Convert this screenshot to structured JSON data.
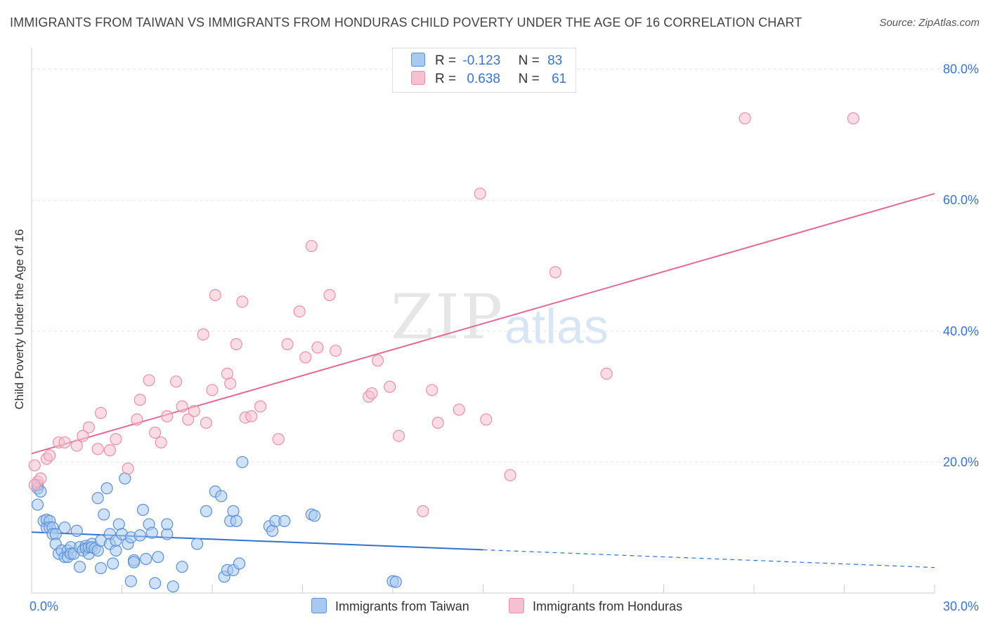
{
  "title": "IMMIGRANTS FROM TAIWAN VS IMMIGRANTS FROM HONDURAS CHILD POVERTY UNDER THE AGE OF 16 CORRELATION CHART",
  "source": "Source: ZipAtlas.com",
  "watermark": {
    "zip": "ZIP",
    "atlas": "atlas"
  },
  "legend": {
    "rows": [
      {
        "r_label": "R =",
        "r_value": "-0.123",
        "n_label": "N =",
        "n_value": "83",
        "color": "#a8c8f0"
      },
      {
        "r_label": "R =",
        "r_value": "0.638",
        "n_label": "N =",
        "n_value": "61",
        "color": "#f5b8c8"
      }
    ]
  },
  "colors": {
    "taiwan_fill": "#a8c8f0",
    "taiwan_stroke": "#5b8fd6",
    "taiwan_line": "#2f72d0",
    "honduras_fill": "#f5c0d0",
    "honduras_stroke": "#e890aa",
    "honduras_line": "#e06a94",
    "tick_text": "#3a74c9",
    "grid": "#e4e4e4"
  },
  "chart_data": {
    "type": "scatter",
    "ylabel": "Child Poverty Under the Age of 16",
    "xlim": [
      0,
      30
    ],
    "ylim": [
      0,
      82
    ],
    "x_tick_labels": [
      {
        "value": 0,
        "label": "0.0%"
      },
      {
        "value": 30,
        "label": "30.0%"
      }
    ],
    "y_tick_labels": [
      {
        "value": 20,
        "label": "20.0%"
      },
      {
        "value": 40,
        "label": "40.0%"
      },
      {
        "value": 60,
        "label": "60.0%"
      },
      {
        "value": 80,
        "label": "80.0%"
      }
    ],
    "grid": true,
    "legend_position": "top-center",
    "series": [
      {
        "name": "Immigrants from Taiwan",
        "trend": {
          "x0": 0,
          "y0": 9.3,
          "x1": 15,
          "y1": 6.6,
          "dashed_to_x": 30,
          "dashed_to_y": 3.9
        },
        "points": [
          [
            0.2,
            16
          ],
          [
            0.2,
            13.5
          ],
          [
            0.2,
            16.5
          ],
          [
            0.3,
            15.5
          ],
          [
            0.4,
            11
          ],
          [
            0.5,
            11.2
          ],
          [
            0.5,
            10
          ],
          [
            0.6,
            11
          ],
          [
            0.6,
            10
          ],
          [
            0.7,
            10
          ],
          [
            0.7,
            9
          ],
          [
            0.8,
            9
          ],
          [
            0.8,
            7.5
          ],
          [
            0.9,
            6
          ],
          [
            1.0,
            6.5
          ],
          [
            1.1,
            10
          ],
          [
            1.1,
            5.5
          ],
          [
            1.2,
            6.5
          ],
          [
            1.2,
            5.5
          ],
          [
            1.3,
            7
          ],
          [
            1.3,
            6
          ],
          [
            1.4,
            6
          ],
          [
            1.5,
            9.5
          ],
          [
            1.6,
            7
          ],
          [
            1.6,
            4
          ],
          [
            1.7,
            6.5
          ],
          [
            1.8,
            7.2
          ],
          [
            1.8,
            6.8
          ],
          [
            1.9,
            6
          ],
          [
            1.9,
            7
          ],
          [
            2.0,
            7.5
          ],
          [
            2.0,
            7
          ],
          [
            2.1,
            6.8
          ],
          [
            2.2,
            14.5
          ],
          [
            2.2,
            6.5
          ],
          [
            2.3,
            3.8
          ],
          [
            2.3,
            8
          ],
          [
            2.4,
            12
          ],
          [
            2.5,
            16
          ],
          [
            2.6,
            9
          ],
          [
            2.6,
            7.5
          ],
          [
            2.7,
            4.5
          ],
          [
            2.8,
            6.5
          ],
          [
            2.8,
            8
          ],
          [
            2.9,
            10.5
          ],
          [
            3.0,
            9
          ],
          [
            3.1,
            17.5
          ],
          [
            3.2,
            7.5
          ],
          [
            3.3,
            1.8
          ],
          [
            3.3,
            8.5
          ],
          [
            3.4,
            5
          ],
          [
            3.4,
            4.7
          ],
          [
            3.6,
            8.8
          ],
          [
            3.7,
            12.7
          ],
          [
            3.8,
            5.2
          ],
          [
            3.9,
            10.5
          ],
          [
            4.0,
            9.2
          ],
          [
            4.1,
            1.5
          ],
          [
            4.2,
            5.5
          ],
          [
            4.5,
            9
          ],
          [
            4.5,
            10.5
          ],
          [
            4.7,
            1
          ],
          [
            5.0,
            4
          ],
          [
            5.5,
            7.5
          ],
          [
            5.8,
            12.5
          ],
          [
            6.1,
            15.5
          ],
          [
            6.3,
            14.8
          ],
          [
            6.4,
            2.5
          ],
          [
            6.5,
            3.5
          ],
          [
            6.6,
            11
          ],
          [
            6.7,
            12.5
          ],
          [
            6.7,
            3.5
          ],
          [
            6.8,
            11
          ],
          [
            6.9,
            4.5
          ],
          [
            7.0,
            20
          ],
          [
            7.9,
            10.2
          ],
          [
            8.0,
            9.5
          ],
          [
            8.1,
            11
          ],
          [
            8.4,
            11
          ],
          [
            9.3,
            12
          ],
          [
            9.4,
            11.8
          ],
          [
            12.0,
            1.8
          ],
          [
            12.1,
            1.7
          ]
        ]
      },
      {
        "name": "Immigrants from Honduras",
        "trend": {
          "x0": 0,
          "y0": 21.3,
          "x1": 30,
          "y1": 61
        },
        "points": [
          [
            0.1,
            19.5
          ],
          [
            0.2,
            17
          ],
          [
            0.3,
            17.5
          ],
          [
            0.5,
            20.5
          ],
          [
            0.6,
            21
          ],
          [
            0.9,
            23
          ],
          [
            1.1,
            23
          ],
          [
            1.5,
            22.5
          ],
          [
            1.7,
            24
          ],
          [
            1.9,
            25.3
          ],
          [
            2.2,
            22
          ],
          [
            2.3,
            27.5
          ],
          [
            2.6,
            21.8
          ],
          [
            2.8,
            23.5
          ],
          [
            3.2,
            19
          ],
          [
            3.5,
            26.5
          ],
          [
            3.6,
            29.5
          ],
          [
            3.9,
            32.5
          ],
          [
            4.1,
            24.5
          ],
          [
            4.3,
            23
          ],
          [
            4.5,
            27
          ],
          [
            4.8,
            32.3
          ],
          [
            5.0,
            28.5
          ],
          [
            5.2,
            26.5
          ],
          [
            5.4,
            27.8
          ],
          [
            5.7,
            39.5
          ],
          [
            5.8,
            26
          ],
          [
            6.0,
            31
          ],
          [
            6.1,
            45.5
          ],
          [
            6.5,
            33.5
          ],
          [
            6.6,
            32
          ],
          [
            6.8,
            38
          ],
          [
            7.0,
            44.5
          ],
          [
            7.1,
            26.8
          ],
          [
            7.3,
            27
          ],
          [
            7.6,
            28.5
          ],
          [
            8.2,
            23.5
          ],
          [
            8.5,
            38
          ],
          [
            8.9,
            43
          ],
          [
            9.1,
            36
          ],
          [
            9.3,
            53
          ],
          [
            9.5,
            37.5
          ],
          [
            9.9,
            45.5
          ],
          [
            10.1,
            37
          ],
          [
            11.2,
            30
          ],
          [
            11.3,
            30.5
          ],
          [
            11.5,
            35.5
          ],
          [
            11.9,
            31.5
          ],
          [
            12.2,
            24
          ],
          [
            13.0,
            12.5
          ],
          [
            13.3,
            31
          ],
          [
            13.5,
            26
          ],
          [
            14.2,
            28
          ],
          [
            14.9,
            61
          ],
          [
            15.1,
            26.5
          ],
          [
            15.9,
            18
          ],
          [
            17.4,
            49
          ],
          [
            19.1,
            33.5
          ],
          [
            23.7,
            72.5
          ],
          [
            27.3,
            72.5
          ],
          [
            0.1,
            16.5
          ]
        ]
      }
    ]
  },
  "bottom_legend": [
    "Immigrants from Taiwan",
    "Immigrants from Honduras"
  ]
}
